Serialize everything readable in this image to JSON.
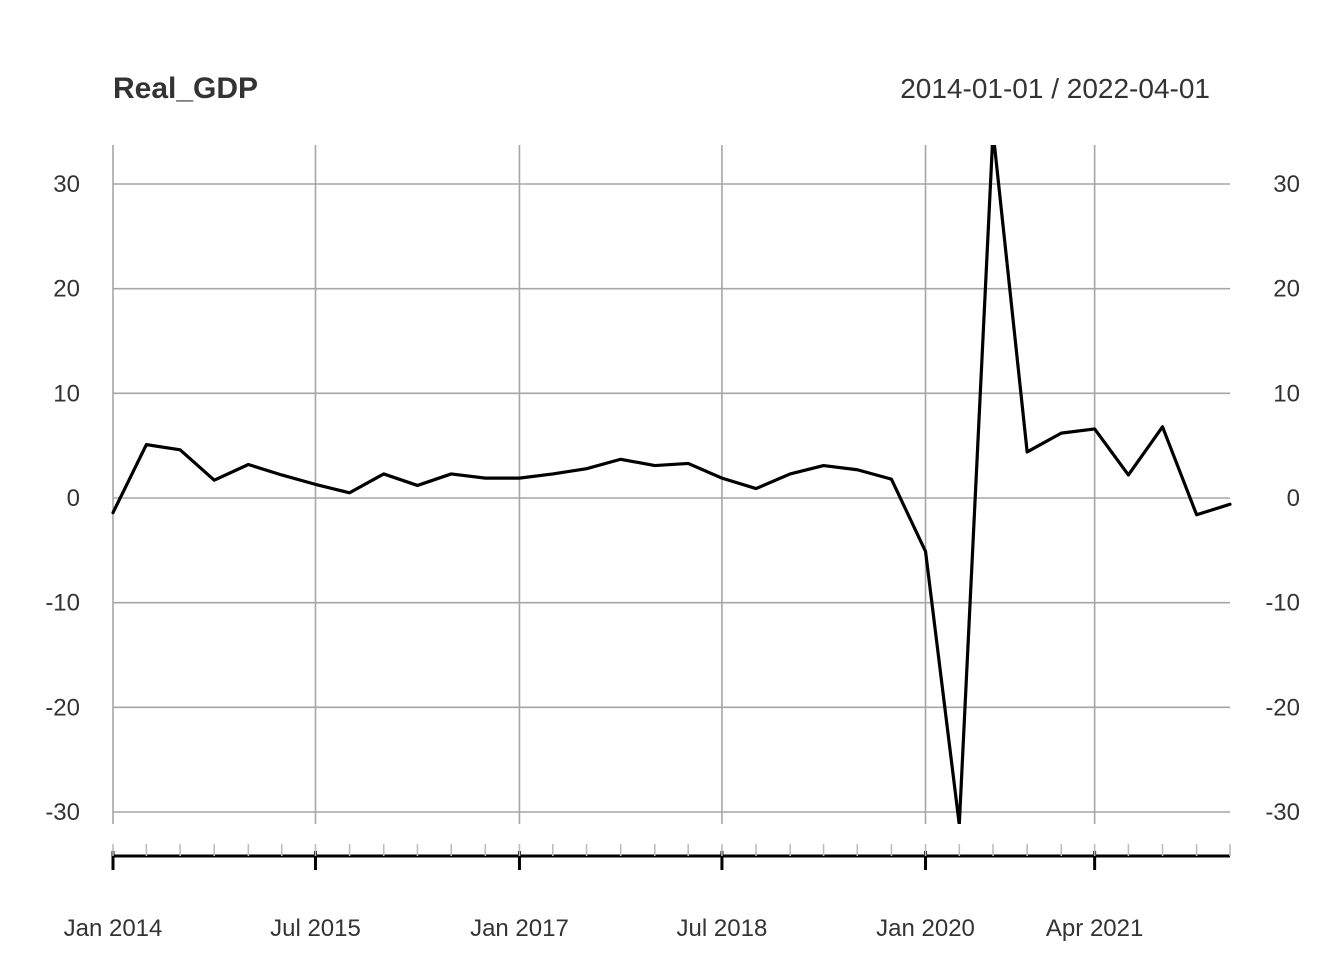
{
  "chart_data": {
    "type": "line",
    "title": "Real_GDP",
    "date_range_label": "2014-01-01 / 2022-04-01",
    "xlabel": "",
    "ylabel": "",
    "x_tick_labels": [
      {
        "date": "2014-01-01",
        "label": "Jan 2014"
      },
      {
        "date": "2015-07-01",
        "label": "Jul 2015"
      },
      {
        "date": "2017-01-01",
        "label": "Jan 2017"
      },
      {
        "date": "2018-07-01",
        "label": "Jul 2018"
      },
      {
        "date": "2020-01-01",
        "label": "Jan 2020"
      },
      {
        "date": "2021-04-01",
        "label": "Apr 2021"
      }
    ],
    "y_ticks": [
      30,
      20,
      10,
      0,
      -10,
      -20,
      -30
    ],
    "ylim": [
      -34,
      34
    ],
    "xlim": [
      "2014-01-01",
      "2022-04-01"
    ],
    "grid": true,
    "line_color": "#000000",
    "grid_color": "#a6a6a6",
    "series": [
      {
        "x": [
          "2014-01-01",
          "2014-04-01",
          "2014-07-01",
          "2014-10-01",
          "2015-01-01",
          "2015-04-01",
          "2015-07-01",
          "2015-10-01",
          "2016-01-01",
          "2016-04-01",
          "2016-07-01",
          "2016-10-01",
          "2017-01-01",
          "2017-04-01",
          "2017-07-01",
          "2017-10-01",
          "2018-01-01",
          "2018-04-01",
          "2018-07-01",
          "2018-10-01",
          "2019-01-01",
          "2019-04-01",
          "2019-07-01",
          "2019-10-01",
          "2020-01-01",
          "2020-04-01",
          "2020-07-01",
          "2020-10-01",
          "2021-01-01",
          "2021-04-01",
          "2021-07-01",
          "2021-10-01",
          "2022-01-01",
          "2022-04-01"
        ],
        "values": [
          -1.4,
          5.1,
          4.6,
          1.7,
          3.2,
          2.2,
          1.3,
          0.5,
          2.3,
          1.2,
          2.3,
          1.9,
          1.9,
          2.3,
          2.8,
          3.7,
          3.1,
          3.3,
          1.9,
          0.9,
          2.3,
          3.1,
          2.7,
          1.8,
          -5.1,
          -31.2,
          35.0,
          4.4,
          6.2,
          6.6,
          2.2,
          6.8,
          -1.6,
          -0.6
        ]
      }
    ]
  }
}
